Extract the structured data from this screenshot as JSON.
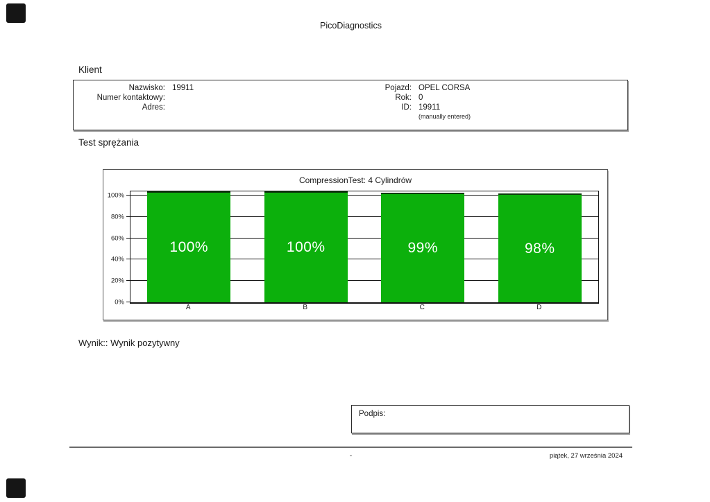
{
  "page": {
    "title": "PicoDiagnostics",
    "footer_center": "-",
    "footer_date": "piątek, 27 września 2024"
  },
  "marks": {
    "top_left": "black-square-registration-mark",
    "bottom_left": "black-square-registration-mark"
  },
  "client": {
    "heading": "Klient",
    "left": [
      {
        "label": "Nazwisko:",
        "value": "19911"
      },
      {
        "label": "Numer kontaktowy:",
        "value": ""
      },
      {
        "label": "Adres:",
        "value": ""
      }
    ],
    "right": [
      {
        "label": "Pojazd:",
        "value": "OPEL CORSA"
      },
      {
        "label": "Rok:",
        "value": "0"
      },
      {
        "label": "ID:",
        "value": "19911"
      }
    ],
    "id_note": "(manually entered)"
  },
  "test": {
    "heading": "Test sprężania",
    "result": "Wynik:: Wynik pozytywny"
  },
  "signature": {
    "label": "Podpis:"
  },
  "chart_data": {
    "type": "bar",
    "title": "CompressionTest: 4 Cylindrów",
    "categories": [
      "A",
      "B",
      "C",
      "D"
    ],
    "values": [
      100,
      100,
      99,
      98
    ],
    "value_labels": [
      "100%",
      "100%",
      "99%",
      "98%"
    ],
    "y_ticks": [
      0,
      20,
      40,
      60,
      80,
      100
    ],
    "y_tick_labels": [
      "0%",
      "20%",
      "40%",
      "60%",
      "80%",
      "100%"
    ],
    "ylim": [
      0,
      104
    ],
    "xlabel": "",
    "ylabel": "",
    "grid": true,
    "legend": false,
    "bar_color": "#0cb00c",
    "bar_label_color": "#ffffff"
  }
}
